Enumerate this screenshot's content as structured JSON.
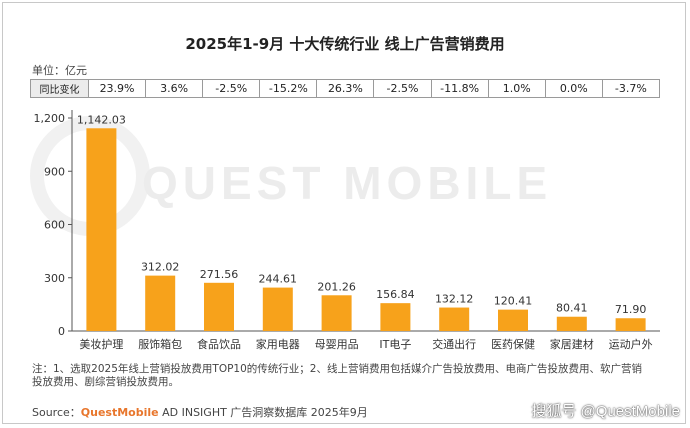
{
  "title": "2025年1-9月 十大传统行业 线上广告营销费用",
  "unit": "单位：亿元",
  "yoy": {
    "label": "同比变化",
    "values": [
      "23.9%",
      "3.6%",
      "-2.5%",
      "-15.2%",
      "26.3%",
      "-2.5%",
      "-11.8%",
      "1.0%",
      "0.0%",
      "-3.7%"
    ]
  },
  "watermark": "QUEST MOBILE",
  "note": "注：1、选取2025年线上营销投放费用TOP10的传统行业；2、线上营销费用包括媒介广告投放费用、电商广告投放费用、软广营销投放费用、剧综营销投放费用。",
  "source": {
    "prefix": "Source：",
    "brand": "QuestMobile",
    "suffix": " AD INSIGHT 广告洞察数据库 2025年9月"
  },
  "credit": "搜狐号 @QuestMobile",
  "colors": {
    "bar": "#f7a21b",
    "axis": "#555555"
  },
  "chart_data": {
    "type": "bar",
    "title": "2025年1-9月 十大传统行业 线上广告营销费用",
    "xlabel": "",
    "ylabel": "亿元",
    "ylim": [
      0,
      1200
    ],
    "yticks": [
      0,
      300,
      600,
      900,
      1200
    ],
    "ytick_labels": [
      "0",
      "300",
      "600",
      "900",
      "1,200"
    ],
    "categories": [
      "美妆护理",
      "服饰箱包",
      "食品饮品",
      "家用电器",
      "母婴用品",
      "IT电子",
      "交通出行",
      "医药保健",
      "家居建材",
      "运动户外"
    ],
    "values": [
      1142.03,
      312.02,
      271.56,
      244.61,
      201.26,
      156.84,
      132.12,
      120.41,
      80.41,
      71.9
    ],
    "value_labels": [
      "1,142.03",
      "312.02",
      "271.56",
      "244.61",
      "201.26",
      "156.84",
      "132.12",
      "120.41",
      "80.41",
      "71.90"
    ]
  }
}
